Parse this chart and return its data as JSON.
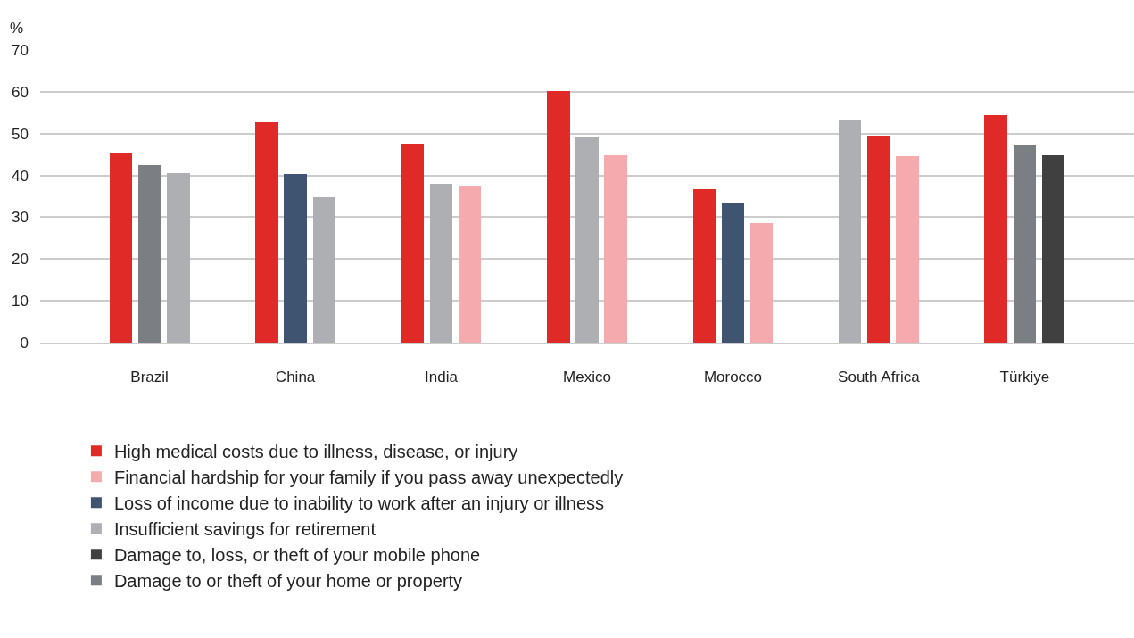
{
  "chart_data": {
    "type": "bar",
    "ylabel": "%",
    "categories": [
      "Brazil",
      "China",
      "India",
      "Mexico",
      "Morocco",
      "South Africa",
      "Türkiye"
    ],
    "series": [
      {
        "name": "High medical costs due to illness, disease, or injury",
        "color": "#e02a27",
        "values": [
          45.2,
          52.7,
          47.6,
          60.2,
          36.7,
          49.5,
          54.4
        ]
      },
      {
        "name": "Financial hardship for your family if you pass away unexpectedly",
        "color": "#f5abad",
        "values": [
          null,
          null,
          37.6,
          44.8,
          28.6,
          44.6,
          null
        ]
      },
      {
        "name": "Loss of income due to inability to work after an injury or illness",
        "color": "#3e5470",
        "values": [
          null,
          40.3,
          null,
          null,
          33.5,
          null,
          null
        ]
      },
      {
        "name": "Insufficient savings for retirement",
        "color": "#aeafb2",
        "values": [
          40.5,
          34.8,
          38.0,
          49.1,
          null,
          53.3,
          null
        ]
      },
      {
        "name": "Damage to, loss, or theft of your mobile phone",
        "color": "#404040",
        "values": [
          null,
          null,
          null,
          null,
          null,
          null,
          44.8
        ]
      },
      {
        "name": "Damage to or theft of your home or property",
        "color": "#7b7e82",
        "values": [
          42.5,
          null,
          null,
          null,
          null,
          null,
          47.2
        ]
      }
    ],
    "ylim": [
      0,
      70
    ],
    "yticks": [
      0,
      10,
      20,
      30,
      40,
      50,
      60,
      70
    ],
    "grid": "y",
    "legend": "bottom left"
  }
}
